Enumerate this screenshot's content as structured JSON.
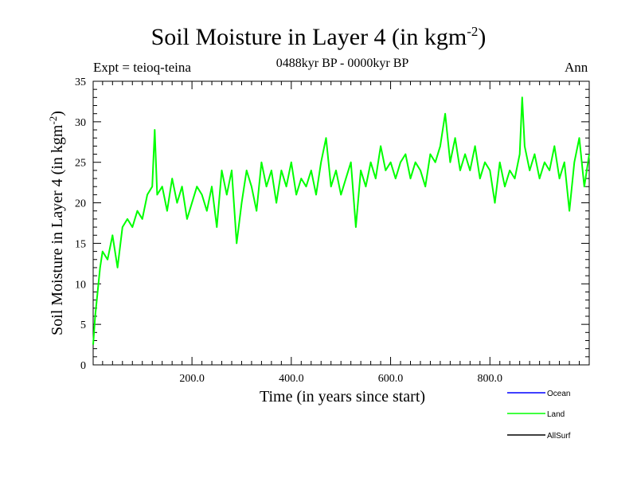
{
  "header": {
    "title_main": "Soil Moisture in Layer 4 (in kgm",
    "title_sup": "-2",
    "title_close": ")",
    "subtitle": "0488kyr BP - 0000kyr BP",
    "expt": "Expt = teioq-teina",
    "season": "Ann"
  },
  "chart_data": {
    "type": "line",
    "title": "Soil Moisture in Layer 4 (in kgm-2)",
    "subtitle": "0488kyr BP - 0000kyr BP",
    "xlabel": "Time (in years since start)",
    "ylabel_main": "Soil Moisture in Layer 4 (in kgm",
    "ylabel_sup": "-2",
    "ylabel_close": ")",
    "xlim": [
      1,
      1000
    ],
    "ylim": [
      0,
      35
    ],
    "xticks": [
      200,
      400,
      600,
      800
    ],
    "xtick_labels": [
      "200.0",
      "400.0",
      "600.0",
      "800.0"
    ],
    "yticks": [
      0,
      5,
      10,
      15,
      20,
      25,
      30,
      35
    ],
    "ytick_labels": [
      "0",
      "5",
      "10",
      "15",
      "20",
      "25",
      "30",
      "35"
    ],
    "grid": false,
    "legend_position": "bottom-right, below plot",
    "series": [
      {
        "name": "Ocean",
        "color": "#0000ff",
        "shown": false,
        "x": [],
        "values": []
      },
      {
        "name": "Land",
        "color": "#00ff00",
        "shown": true,
        "x": [
          1,
          5,
          10,
          15,
          20,
          30,
          40,
          50,
          60,
          70,
          80,
          90,
          100,
          110,
          120,
          125,
          130,
          140,
          150,
          160,
          170,
          180,
          190,
          200,
          210,
          220,
          230,
          240,
          250,
          260,
          270,
          280,
          290,
          300,
          310,
          320,
          330,
          340,
          350,
          360,
          370,
          380,
          390,
          400,
          410,
          420,
          430,
          440,
          450,
          460,
          470,
          480,
          490,
          500,
          510,
          520,
          530,
          540,
          550,
          560,
          570,
          580,
          590,
          600,
          610,
          620,
          630,
          640,
          650,
          660,
          670,
          680,
          690,
          700,
          710,
          720,
          730,
          740,
          750,
          760,
          770,
          780,
          790,
          800,
          810,
          820,
          830,
          840,
          850,
          860,
          865,
          870,
          880,
          890,
          900,
          910,
          920,
          930,
          940,
          950,
          960,
          970,
          980,
          990,
          1000
        ],
        "values": [
          2.5,
          6,
          9,
          12,
          14,
          13,
          16,
          12,
          17,
          18,
          17,
          19,
          18,
          21,
          22,
          29,
          21,
          22,
          19,
          23,
          20,
          22,
          18,
          20,
          22,
          21,
          19,
          22,
          17,
          24,
          21,
          24,
          15,
          20,
          24,
          22,
          19,
          25,
          22,
          24,
          20,
          24,
          22,
          25,
          21,
          23,
          22,
          24,
          21,
          25,
          28,
          22,
          24,
          21,
          23,
          25,
          17,
          24,
          22,
          25,
          23,
          27,
          24,
          25,
          23,
          25,
          26,
          23,
          25,
          24,
          22,
          26,
          25,
          27,
          31,
          25,
          28,
          24,
          26,
          24,
          27,
          23,
          25,
          24,
          20,
          25,
          22,
          24,
          23,
          26,
          33,
          27,
          24,
          26,
          23,
          25,
          24,
          27,
          23,
          25,
          19,
          25,
          28,
          22,
          26
        ]
      },
      {
        "name": "AllSurf",
        "color": "#000000",
        "shown": false,
        "x": [],
        "values": []
      }
    ]
  }
}
